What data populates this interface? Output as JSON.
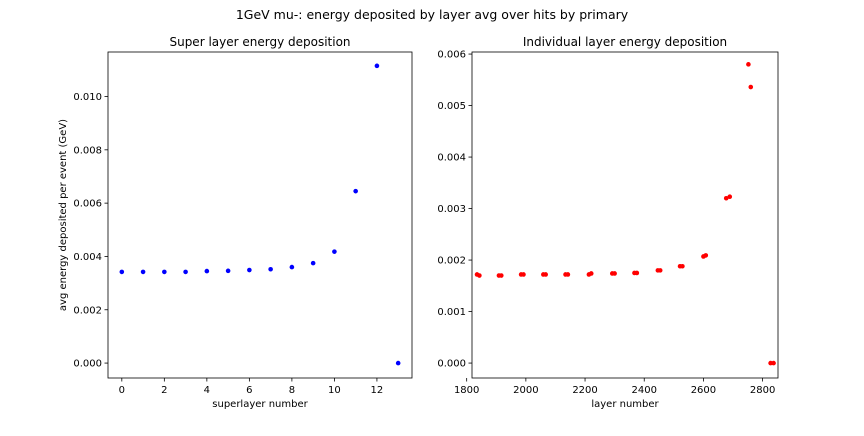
{
  "figure": {
    "suptitle": "1GeV mu-: energy deposited by layer avg over hits by primary"
  },
  "chart_data": [
    {
      "type": "scatter",
      "title": "Super layer energy deposition",
      "xlabel": "superlayer number",
      "ylabel": "avg energy deposited per event (GeV)",
      "xlim": [
        -0.65,
        13.65
      ],
      "ylim": [
        -0.00056,
        0.01167
      ],
      "xticks": [
        0,
        2,
        4,
        6,
        8,
        10,
        12
      ],
      "xtick_labels": [
        "0",
        "2",
        "4",
        "6",
        "8",
        "10",
        "12"
      ],
      "yticks": [
        0.0,
        0.002,
        0.004,
        0.006,
        0.008,
        0.01
      ],
      "ytick_labels": [
        "0.000",
        "0.002",
        "0.004",
        "0.006",
        "0.008",
        "0.010"
      ],
      "marker_color": "#0000ff",
      "series": [
        {
          "x": [
            0,
            1,
            2,
            3,
            4,
            5,
            6,
            7,
            8,
            9,
            10,
            11,
            12,
            13
          ],
          "y": [
            0.00342,
            0.00342,
            0.00342,
            0.00342,
            0.00345,
            0.00346,
            0.00349,
            0.00352,
            0.0036,
            0.00375,
            0.00418,
            0.00645,
            0.01115,
            0.0
          ]
        }
      ]
    },
    {
      "type": "scatter",
      "title": "Individual layer energy deposition",
      "xlabel": "layer number",
      "ylabel": "",
      "xlim": [
        1818,
        2852
      ],
      "ylim": [
        -0.00029,
        0.00604
      ],
      "xticks": [
        1800,
        2000,
        2200,
        2400,
        2600,
        2800
      ],
      "xtick_labels": [
        "1800",
        "2000",
        "2200",
        "2400",
        "2600",
        "2800"
      ],
      "yticks": [
        0.0,
        0.001,
        0.002,
        0.003,
        0.004,
        0.005,
        0.006
      ],
      "ytick_labels": [
        "0.000",
        "0.001",
        "0.002",
        "0.003",
        "0.004",
        "0.005",
        "0.006"
      ],
      "marker_color": "#ff0000",
      "series": [
        {
          "x": [
            1835,
            1843,
            1909,
            1917,
            1984,
            1992,
            2059,
            2067,
            2134,
            2142,
            2213,
            2221,
            2292,
            2300,
            2367,
            2375,
            2446,
            2454,
            2521,
            2529,
            2600,
            2608,
            2677,
            2689,
            2752,
            2760,
            2827,
            2837
          ],
          "y": [
            0.00172,
            0.0017,
            0.0017,
            0.0017,
            0.00172,
            0.00172,
            0.00172,
            0.00172,
            0.00172,
            0.00172,
            0.00172,
            0.00174,
            0.00174,
            0.00174,
            0.00175,
            0.00175,
            0.0018,
            0.0018,
            0.00188,
            0.00188,
            0.00207,
            0.00209,
            0.0032,
            0.00323,
            0.0058,
            0.00536,
            0.0,
            0.0
          ]
        }
      ]
    }
  ]
}
